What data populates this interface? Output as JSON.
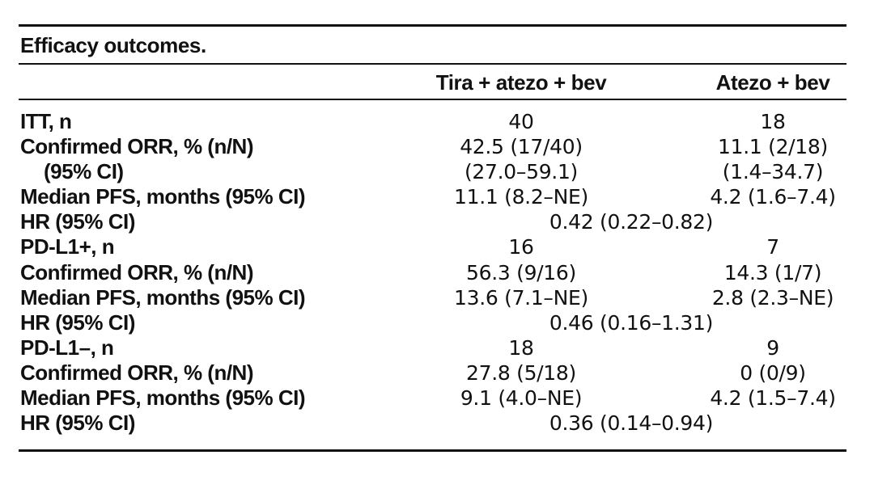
{
  "table": {
    "caption": "Efficacy outcomes.",
    "columns": [
      "Tira + atezo + bev",
      "Atezo + bev"
    ],
    "rows": [
      {
        "label": "ITT, n",
        "cells": [
          "40",
          "18"
        ]
      },
      {
        "label": "Confirmed ORR, % (n/N)",
        "cells": [
          "42.5 (17/40)",
          "11.1 (2/18)"
        ]
      },
      {
        "label": "(95% CI)",
        "cells": [
          "(27.0–59.1)",
          "(1.4–34.7)"
        ]
      },
      {
        "label": "Median PFS, months (95% CI)",
        "cells": [
          "11.1 (8.2–NE)",
          "4.2 (1.6–7.4)"
        ]
      },
      {
        "label": "HR (95% CI)",
        "span": "0.42 (0.22–0.82)"
      },
      {
        "label": "PD-L1+, n",
        "cells": [
          "16",
          "7"
        ]
      },
      {
        "label": "Confirmed ORR, % (n/N)",
        "cells": [
          "56.3 (9/16)",
          "14.3 (1/7)"
        ]
      },
      {
        "label": "Median PFS, months (95% CI)",
        "cells": [
          "13.6 (7.1–NE)",
          "2.8 (2.3–NE)"
        ]
      },
      {
        "label": "HR (95% CI)",
        "span": "0.46 (0.16–1.31)"
      },
      {
        "label": "PD-L1–, n",
        "cells": [
          "18",
          "9"
        ]
      },
      {
        "label": "Confirmed ORR, % (n/N)",
        "cells": [
          "27.8 (5/18)",
          "0 (0/9)"
        ]
      },
      {
        "label": "Median PFS, months (95% CI)",
        "cells": [
          "9.1 (4.0–NE)",
          "4.2 (1.5–7.4)"
        ]
      },
      {
        "label": "HR (95% CI)",
        "span": "0.36 (0.14–0.94)"
      }
    ]
  }
}
